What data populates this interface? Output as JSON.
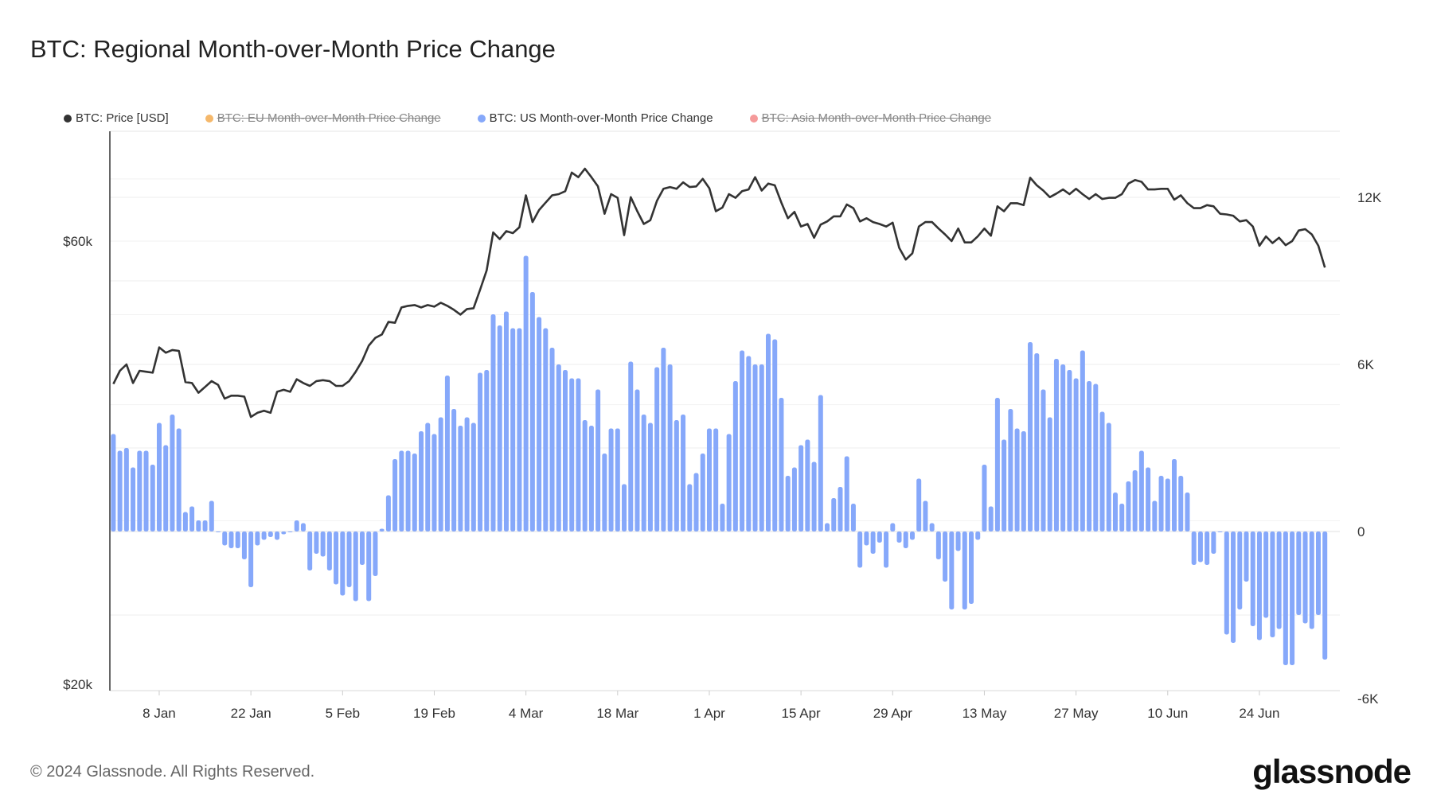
{
  "title": "BTC: Regional Month-over-Month Price Change",
  "footer": "© 2024 Glassnode. All Rights Reserved.",
  "logo": "glassnode",
  "chart_data": {
    "type": "bar+line",
    "start_date": "2024-01-01",
    "legend": [
      {
        "name": "BTC: Price [USD]",
        "color": "#333333",
        "active": true
      },
      {
        "name": "BTC: EU Month-over-Month Price Change",
        "color": "#f5b86b",
        "active": false
      },
      {
        "name": "BTC: US Month-over-Month Price Change",
        "color": "#86a8fa",
        "active": true
      },
      {
        "name": "BTC: Asia Month-over-Month Price Change",
        "color": "#f59a9a",
        "active": false
      }
    ],
    "x_ticks": [
      "8 Jan",
      "22 Jan",
      "5 Feb",
      "19 Feb",
      "4 Mar",
      "18 Mar",
      "1 Apr",
      "15 Apr",
      "29 Apr",
      "13 May",
      "27 May",
      "10 Jun",
      "24 Jun"
    ],
    "left_axis": {
      "scale": "log",
      "ticks": [
        "$20k",
        "$60k"
      ],
      "tick_values": [
        20000,
        60000
      ]
    },
    "right_axis": {
      "scale": "linear",
      "ticks": [
        "-6K",
        "0",
        "6K",
        "12K"
      ],
      "tick_values": [
        -6000,
        0,
        6000,
        12000
      ]
    },
    "price": [
      42100,
      43500,
      44200,
      42200,
      43500,
      43400,
      43300,
      46100,
      45500,
      45800,
      45700,
      42300,
      42200,
      41200,
      41800,
      42400,
      42000,
      40600,
      40900,
      40900,
      40800,
      38800,
      39200,
      39400,
      39200,
      41300,
      41500,
      41300,
      42600,
      42200,
      41900,
      42400,
      42500,
      42400,
      41900,
      41900,
      42400,
      43400,
      44600,
      46300,
      47200,
      47600,
      49100,
      49000,
      50900,
      51100,
      51200,
      50900,
      51200,
      51000,
      51500,
      51100,
      50600,
      50000,
      50700,
      50800,
      53200,
      55800,
      61300,
      60300,
      61500,
      61200,
      62100,
      67200,
      62900,
      64800,
      66000,
      67200,
      67400,
      67900,
      71100,
      70300,
      71800,
      70300,
      68700,
      64200,
      67400,
      66800,
      60900,
      66900,
      64600,
      62600,
      63200,
      66300,
      68300,
      68600,
      68300,
      69400,
      68600,
      68700,
      70000,
      68400,
      64600,
      65200,
      67400,
      66800,
      67900,
      68200,
      70300,
      68000,
      69200,
      68900,
      66000,
      63500,
      64500,
      62200,
      62600,
      60500,
      62500,
      63000,
      63800,
      63800,
      65700,
      65100,
      63000,
      63500,
      62900,
      62600,
      62200,
      62800,
      59000,
      57300,
      58200,
      62200,
      62900,
      62900,
      61900,
      61000,
      60000,
      61900,
      59800,
      59800,
      60700,
      61900,
      60800,
      65400,
      64600,
      65900,
      65900,
      65600,
      70200,
      68900,
      68000,
      66900,
      67500,
      68200,
      67400,
      68300,
      67400,
      66600,
      67400,
      66600,
      66800,
      66800,
      67400,
      69200,
      69800,
      69500,
      68200,
      68200,
      68300,
      68300,
      66500,
      67200,
      65900,
      65100,
      65100,
      65600,
      65400,
      64200,
      64100,
      63900,
      63000,
      63200,
      62200,
      59300,
      60700,
      59700,
      60500,
      59400,
      60000,
      61600,
      61800,
      61000,
      59300,
      56200
    ],
    "us_mom_change": [
      3500,
      2900,
      3000,
      2300,
      2900,
      2900,
      2400,
      3900,
      3100,
      4200,
      3700,
      700,
      900,
      400,
      400,
      1100,
      0,
      -500,
      -600,
      -600,
      -1000,
      -2000,
      -500,
      -300,
      -200,
      -300,
      -100,
      0,
      400,
      300,
      -1400,
      -800,
      -900,
      -1400,
      -1900,
      -2300,
      -2000,
      -2500,
      -1200,
      -2500,
      -1600,
      100,
      1300,
      2600,
      2900,
      2900,
      2800,
      3600,
      3900,
      3500,
      4100,
      5600,
      4400,
      3800,
      4100,
      3900,
      5700,
      5800,
      7800,
      7400,
      7900,
      7300,
      7300,
      9900,
      8600,
      7700,
      7300,
      6600,
      6000,
      5800,
      5500,
      5500,
      4000,
      3800,
      5100,
      2800,
      3700,
      3700,
      1700,
      6100,
      5100,
      4200,
      3900,
      5900,
      6600,
      6000,
      4000,
      4200,
      1700,
      2100,
      2800,
      3700,
      3700,
      1000,
      3500,
      5400,
      6500,
      6300,
      6000,
      6000,
      7100,
      6900,
      4800,
      2000,
      2300,
      3100,
      3300,
      2500,
      4900,
      300,
      1200,
      1600,
      2700,
      1000,
      -1300,
      -500,
      -800,
      -400,
      -1300,
      300,
      -400,
      -600,
      -300,
      1900,
      1100,
      300,
      -1000,
      -1800,
      -2800,
      -700,
      -2800,
      -2600,
      -300,
      2400,
      900,
      4800,
      3300,
      4400,
      3700,
      3600,
      6800,
      6400,
      5100,
      4100,
      6200,
      6000,
      5800,
      5500,
      6500,
      5400,
      5300,
      4300,
      3900,
      1400,
      1000,
      1800,
      2200,
      2900,
      2300,
      1100,
      2000,
      1900,
      2600,
      2000,
      1400,
      -1200,
      -1100,
      -1200,
      -800,
      0,
      -3700,
      -4000,
      -2800,
      -1800,
      -3400,
      -3900,
      -3100,
      -3800,
      -3500,
      -4800,
      -4800,
      -3000,
      -3300,
      -3500,
      -3000,
      -4600
    ]
  }
}
